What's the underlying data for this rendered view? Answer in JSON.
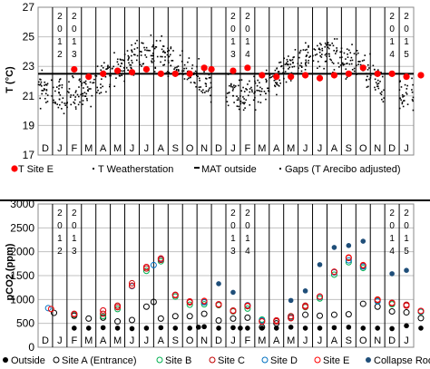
{
  "chart_data": [
    {
      "type": "scatter",
      "ylabel": "T (°C)",
      "ylim": [
        17,
        27
      ],
      "yticks": [
        17,
        19,
        21,
        23,
        25,
        27
      ],
      "months": [
        "D",
        "J",
        "F",
        "M",
        "A",
        "M",
        "J",
        "J",
        "A",
        "S",
        "O",
        "N",
        "D",
        "J",
        "F",
        "M",
        "A",
        "M",
        "J",
        "J",
        "A",
        "S",
        "O",
        "N",
        "D",
        "J"
      ],
      "year_labels": [
        {
          "month_index": 1,
          "chars": [
            "2",
            "0",
            "1",
            "2"
          ]
        },
        {
          "month_index": 2,
          "chars": [
            "2",
            "0",
            "1",
            "3"
          ]
        },
        {
          "month_index": 13,
          "chars": [
            "2",
            "0",
            "1",
            "3"
          ]
        },
        {
          "month_index": 14,
          "chars": [
            "2",
            "0",
            "1",
            "4"
          ]
        },
        {
          "month_index": 24,
          "chars": [
            "2",
            "0",
            "1",
            "4"
          ]
        },
        {
          "month_index": 25,
          "chars": [
            "2",
            "0",
            "1",
            "5"
          ]
        }
      ],
      "mat_outside": 22.5,
      "series": [
        {
          "name": "T Site E",
          "marker": "red-circle",
          "color": "#ff0000",
          "x": [
            2,
            3,
            4,
            5,
            6,
            7,
            8,
            9,
            10,
            11,
            11.5,
            13,
            14,
            15,
            16,
            17,
            18,
            19,
            20,
            21,
            22,
            23,
            24,
            25,
            26
          ],
          "values": [
            22.8,
            22.3,
            22.5,
            22.7,
            22.6,
            22.8,
            22.5,
            22.5,
            22.5,
            22.9,
            22.8,
            22.7,
            22.9,
            22.4,
            22.3,
            22.3,
            22.4,
            22.2,
            22.4,
            22.5,
            22.9,
            22.5,
            22.5,
            22.3,
            22.4
          ]
        },
        {
          "name": "T Weatherstation",
          "marker": "small-dot",
          "color": "#000000"
        },
        {
          "name": "MAT outside",
          "marker": "line",
          "color": "#000000"
        },
        {
          "name": "Gaps (T Arecibo adjusted)",
          "marker": "small-dot",
          "color": "#000000"
        }
      ],
      "legend": [
        "T Site E",
        "T Weatherstation",
        "MAT outside",
        "Gaps (T Arecibo adjusted)"
      ]
    },
    {
      "type": "scatter",
      "ylabel": "pCO2 (ppm)",
      "ylim": [
        0,
        3000
      ],
      "yticks": [
        0,
        500,
        1000,
        1500,
        2000,
        2500,
        3000
      ],
      "months": [
        "D",
        "J",
        "F",
        "M",
        "A",
        "M",
        "J",
        "J",
        "A",
        "S",
        "O",
        "N",
        "D",
        "J",
        "F",
        "M",
        "A",
        "M",
        "J",
        "J",
        "A",
        "S",
        "O",
        "N",
        "D",
        "J"
      ],
      "year_labels": [
        {
          "month_index": 1,
          "chars": [
            "2",
            "0",
            "1",
            "2"
          ]
        },
        {
          "month_index": 2,
          "chars": [
            "2",
            "0",
            "1",
            "3"
          ]
        },
        {
          "month_index": 13,
          "chars": [
            "2",
            "0",
            "1",
            "3"
          ]
        },
        {
          "month_index": 14,
          "chars": [
            "2",
            "0",
            "1",
            "4"
          ]
        },
        {
          "month_index": 24,
          "chars": [
            "2",
            "0",
            "1",
            "4"
          ]
        },
        {
          "month_index": 25,
          "chars": [
            "2",
            "0",
            "1",
            "5"
          ]
        }
      ],
      "series": [
        {
          "name": "Outside",
          "color": "#000000",
          "filled": true,
          "x": [
            2.0,
            3.0,
            4.0,
            5.0,
            6.0,
            7.0,
            8.0,
            9.0,
            10.0,
            10.6,
            11.0,
            12.0,
            13.0,
            13.5,
            14.0,
            15.0,
            16.0,
            17.0,
            18.0,
            19.0,
            20.0,
            21.0,
            22.0,
            23.0,
            24.0,
            25.0,
            26.0
          ],
          "values": [
            400,
            400,
            410,
            400,
            390,
            400,
            410,
            400,
            400,
            420,
            430,
            400,
            410,
            400,
            400,
            400,
            400,
            420,
            400,
            400,
            410,
            420,
            400,
            400,
            390,
            450,
            400
          ]
        },
        {
          "name": "Site A (Entrance)",
          "color": "#000000",
          "filled": false,
          "x": [
            0.6,
            2.0,
            3.0,
            4.0,
            5.0,
            6.0,
            7.0,
            7.5,
            8.0,
            9.0,
            10.0,
            11.0,
            12.0,
            13.0,
            14.0,
            15.0,
            16.0,
            17.0,
            18.0,
            19.0,
            20.0,
            21.0,
            22.0,
            23.0,
            24.0,
            25.0,
            26.0
          ],
          "values": [
            720,
            660,
            600,
            620,
            540,
            570,
            850,
            950,
            600,
            650,
            650,
            700,
            560,
            600,
            620,
            420,
            500,
            610,
            680,
            660,
            680,
            690,
            910,
            850,
            750,
            730,
            610
          ]
        },
        {
          "name": "Site B",
          "color": "#00b050",
          "filled": false,
          "x": [
            2.0,
            4.0,
            5.0,
            6.0,
            7.0,
            8.0,
            9.0,
            10.0,
            11.0,
            12.0,
            13.0,
            14.0,
            15.0,
            16.0,
            17.0,
            18.0,
            19.0,
            20.0,
            21.0,
            22.0,
            23.0,
            24.0,
            25.0,
            26.0
          ],
          "values": [
            680,
            650,
            800,
            1280,
            1600,
            1800,
            1060,
            890,
            900,
            880,
            750,
            810,
            580,
            560,
            640,
            840,
            1020,
            1520,
            1780,
            1660,
            980,
            900,
            880,
            740
          ]
        },
        {
          "name": "Site C",
          "color": "#c00000",
          "filled": false,
          "x": [
            2.0,
            4.0,
            5.0,
            6.0,
            7.0,
            8.0,
            9.0,
            10.0,
            11.0,
            12.0,
            13.0,
            14.0,
            15.0,
            16.0,
            17.0,
            18.0,
            19.0,
            20.0,
            21.0,
            22.0,
            23.0,
            24.0,
            25.0,
            26.0
          ],
          "values": [
            700,
            700,
            870,
            1340,
            1650,
            1830,
            1100,
            940,
            950,
            890,
            770,
            860,
            540,
            540,
            650,
            870,
            1060,
            1580,
            1870,
            1710,
            1000,
            920,
            890,
            760
          ]
        },
        {
          "name": "Site D",
          "color": "#0070c0",
          "filled": false,
          "x": [
            0.2,
            2.0,
            4.0,
            5.0,
            6.0,
            7.0,
            7.5,
            8.0,
            9.0,
            10.0,
            11.0,
            12.0,
            13.0,
            14.0,
            15.0,
            16.0,
            17.0,
            18.0,
            19.0,
            20.0,
            21.0,
            22.0,
            23.0,
            24.0,
            25.0,
            26.0
          ],
          "values": [
            820,
            690,
            770,
            840,
            1280,
            1680,
            1720,
            1850,
            1090,
            960,
            940,
            900,
            760,
            880,
            560,
            560,
            620,
            850,
            1050,
            1570,
            1820,
            1690,
            960,
            930,
            870,
            750
          ]
        },
        {
          "name": "Site E",
          "color": "#ff0000",
          "filled": false,
          "x": [
            0.4,
            2.0,
            4.0,
            5.0,
            6.0,
            7.0,
            8.0,
            9.0,
            10.0,
            11.0,
            12.0,
            13.0,
            14.0,
            15.0,
            16.0,
            17.0,
            18.0,
            19.0,
            20.0,
            21.0,
            22.0,
            23.0,
            24.0,
            25.0,
            26.0
          ],
          "values": [
            800,
            690,
            770,
            840,
            1290,
            1680,
            1860,
            1090,
            960,
            970,
            900,
            760,
            870,
            540,
            560,
            610,
            850,
            1060,
            1580,
            1880,
            1720,
            990,
            930,
            870,
            760
          ]
        },
        {
          "name": "Collapse Room",
          "color": "#1f4e79",
          "filled": true,
          "x": [
            12.0,
            13.0,
            17.0,
            18.0,
            19.0,
            20.0,
            21.0,
            22.0,
            24.0,
            25.0
          ],
          "values": [
            1330,
            1150,
            980,
            1180,
            1730,
            2090,
            2130,
            2220,
            1540,
            1610
          ]
        }
      ],
      "legend": [
        "Outside",
        "Site A (Entrance)",
        "Site B",
        "Site C",
        "Site D",
        "Site E",
        "Collapse Room"
      ]
    }
  ]
}
